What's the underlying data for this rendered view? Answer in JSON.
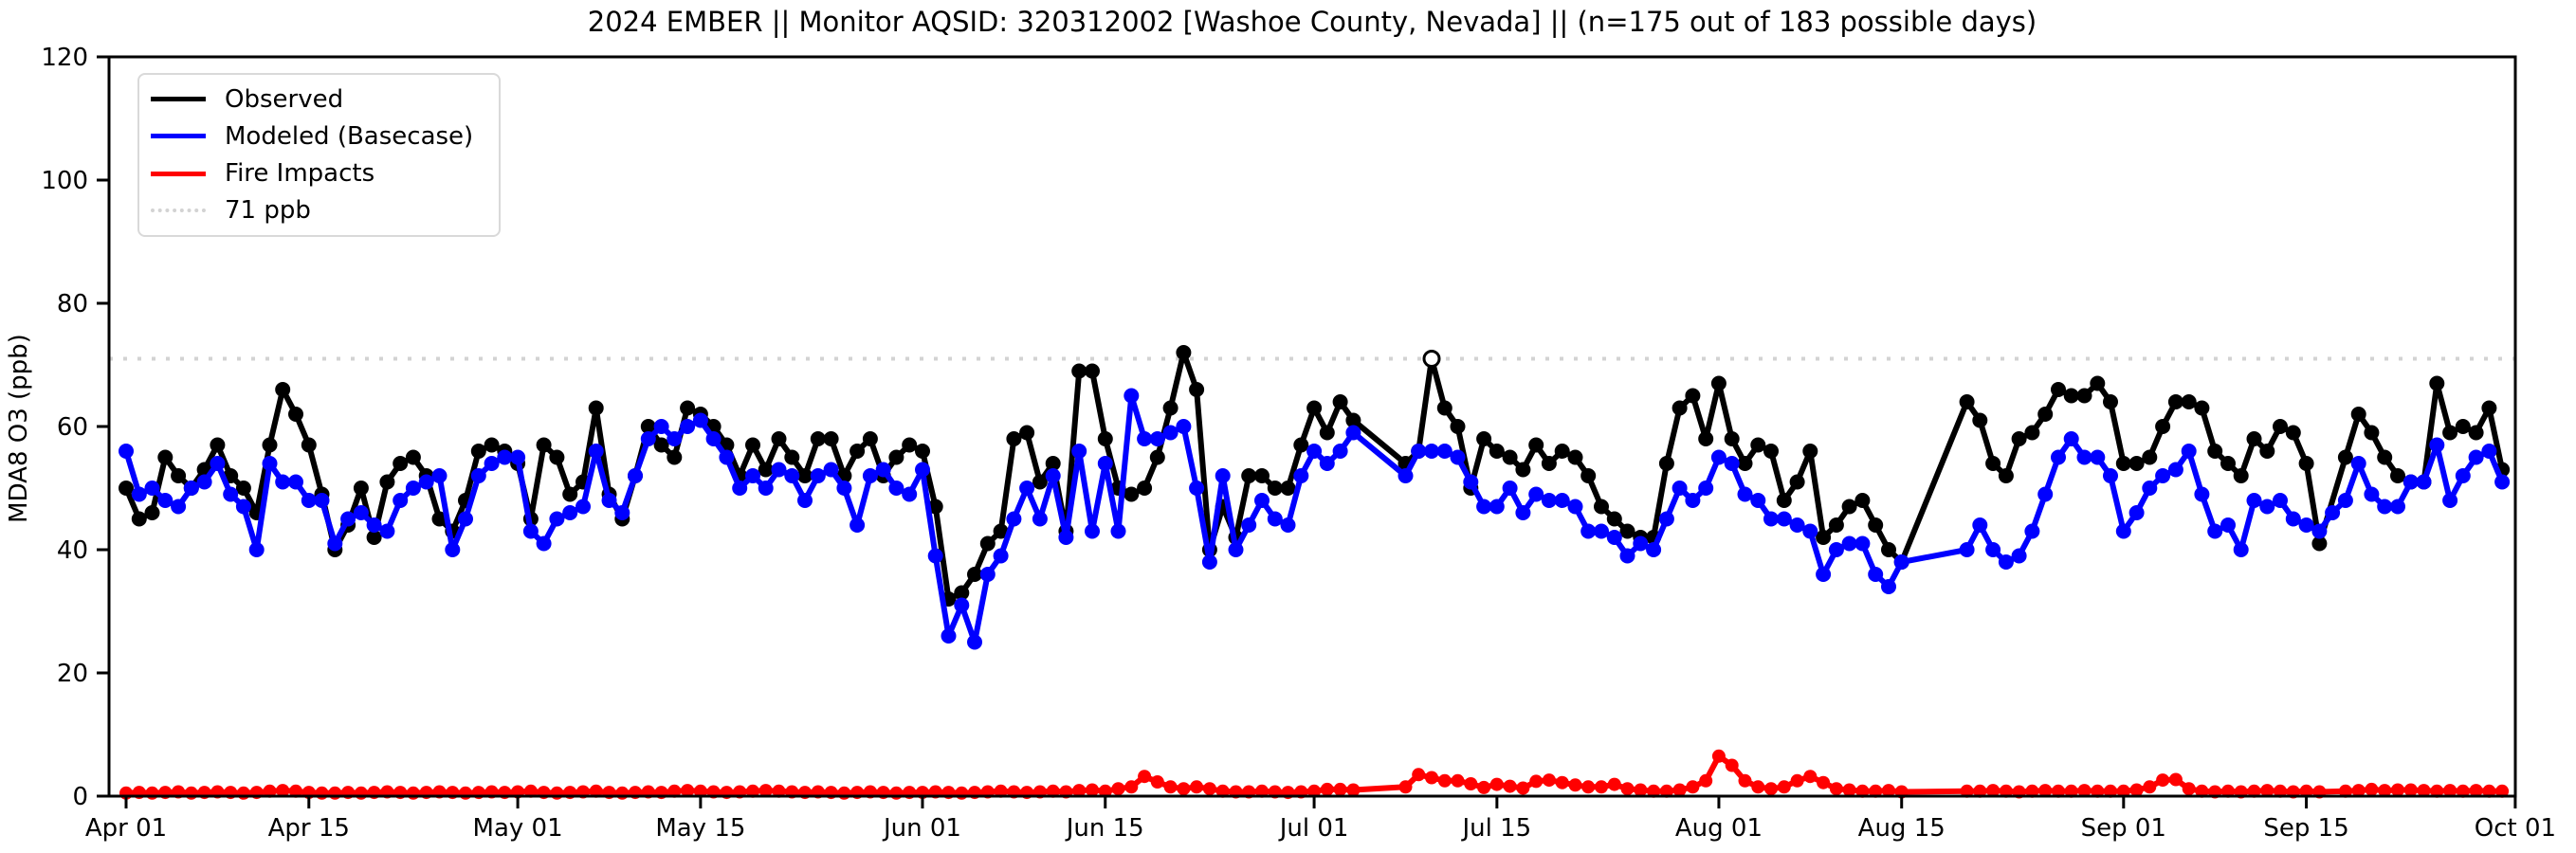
{
  "chart_data": {
    "type": "line",
    "title": "2024 EMBER || Monitor AQSID: 320312002 [Washoe County, Nevada] || (n=175 out of 183 possible days)",
    "ylabel": "MDA8 O3 (ppb)",
    "ylim": [
      0,
      120
    ],
    "yticks": [
      0,
      20,
      40,
      60,
      80,
      100,
      120
    ],
    "xticks": [
      {
        "label": "Apr 01",
        "day": 0
      },
      {
        "label": "Apr 15",
        "day": 14
      },
      {
        "label": "May 01",
        "day": 30
      },
      {
        "label": "May 15",
        "day": 44
      },
      {
        "label": "Jun 01",
        "day": 61
      },
      {
        "label": "Jun 15",
        "day": 75
      },
      {
        "label": "Jul 01",
        "day": 91
      },
      {
        "label": "Jul 15",
        "day": 105
      },
      {
        "label": "Aug 01",
        "day": 122
      },
      {
        "label": "Aug 15",
        "day": 136
      },
      {
        "label": "Sep 01",
        "day": 153
      },
      {
        "label": "Sep 15",
        "day": 167
      },
      {
        "label": "Oct 01",
        "day": 183
      }
    ],
    "n_possible_days": 183,
    "n_observed_days": 175,
    "grid": false,
    "legend_position": "upper-left",
    "threshold": {
      "label": "71 ppb",
      "value": 71,
      "color": "#d3d3d3",
      "style": "dotted"
    },
    "hollow_marker": {
      "series": "Observed",
      "day_index": 100,
      "value": 71
    },
    "legend": [
      {
        "label": "Observed",
        "color": "#000000",
        "style": "solid"
      },
      {
        "label": "Modeled (Basecase)",
        "color": "#0000ff",
        "style": "solid"
      },
      {
        "label": "Fire Impacts",
        "color": "#ff0000",
        "style": "solid"
      },
      {
        "label": "71 ppb",
        "color": "#d3d3d3",
        "style": "dotted"
      }
    ],
    "series": [
      {
        "name": "Observed",
        "color": "#000000",
        "values": [
          50,
          45,
          46,
          55,
          52,
          50,
          53,
          57,
          52,
          50,
          46,
          57,
          66,
          62,
          57,
          49,
          40,
          44,
          50,
          42,
          51,
          54,
          55,
          52,
          45,
          43,
          48,
          56,
          57,
          56,
          54,
          45,
          57,
          55,
          49,
          51,
          63,
          49,
          45,
          52,
          60,
          57,
          55,
          63,
          62,
          60,
          57,
          52,
          57,
          53,
          58,
          55,
          52,
          58,
          58,
          52,
          56,
          58,
          52,
          55,
          57,
          56,
          47,
          32,
          33,
          36,
          41,
          43,
          58,
          59,
          51,
          54,
          43,
          69,
          69,
          58,
          50,
          49,
          50,
          55,
          63,
          72,
          66,
          40,
          47,
          42,
          52,
          52,
          50,
          50,
          57,
          63,
          59,
          64,
          61,
          null,
          null,
          null,
          54,
          56,
          71,
          63,
          60,
          50,
          58,
          56,
          55,
          53,
          57,
          54,
          56,
          55,
          52,
          47,
          45,
          43,
          42,
          42,
          54,
          63,
          65,
          58,
          67,
          58,
          54,
          57,
          56,
          48,
          51,
          56,
          42,
          44,
          47,
          48,
          44,
          40,
          38,
          null,
          null,
          null,
          null,
          64,
          61,
          54,
          52,
          58,
          59,
          62,
          66,
          65,
          65,
          67,
          64,
          54,
          54,
          55,
          60,
          64,
          64,
          63,
          56,
          54,
          52,
          58,
          56,
          60,
          59,
          54,
          41,
          null,
          55,
          62,
          59,
          55,
          52,
          51,
          51,
          67,
          59,
          60,
          59,
          63,
          53
        ]
      },
      {
        "name": "Modeled (Basecase)",
        "color": "#0000ff",
        "values": [
          56,
          49,
          50,
          48,
          47,
          50,
          51,
          54,
          49,
          47,
          40,
          54,
          51,
          51,
          48,
          48,
          41,
          45,
          46,
          44,
          43,
          48,
          50,
          51,
          52,
          40,
          45,
          52,
          54,
          55,
          55,
          43,
          41,
          45,
          46,
          47,
          56,
          48,
          46,
          52,
          58,
          60,
          58,
          60,
          61,
          58,
          55,
          50,
          52,
          50,
          53,
          52,
          48,
          52,
          53,
          50,
          44,
          52,
          53,
          50,
          49,
          53,
          39,
          26,
          31,
          25,
          36,
          39,
          45,
          50,
          45,
          52,
          42,
          56,
          43,
          54,
          43,
          65,
          58,
          58,
          59,
          60,
          50,
          38,
          52,
          40,
          44,
          48,
          45,
          44,
          52,
          56,
          54,
          56,
          59,
          null,
          null,
          null,
          52,
          56,
          56,
          56,
          55,
          51,
          47,
          47,
          50,
          46,
          49,
          48,
          48,
          47,
          43,
          43,
          42,
          39,
          41,
          40,
          45,
          50,
          48,
          50,
          55,
          54,
          49,
          48,
          45,
          45,
          44,
          43,
          36,
          40,
          41,
          41,
          36,
          34,
          38,
          null,
          null,
          null,
          null,
          40,
          44,
          40,
          38,
          39,
          43,
          49,
          55,
          58,
          55,
          55,
          52,
          43,
          46,
          50,
          52,
          53,
          56,
          49,
          43,
          44,
          40,
          48,
          47,
          48,
          45,
          44,
          43,
          46,
          48,
          54,
          49,
          47,
          47,
          51,
          51,
          57,
          48,
          52,
          55,
          56,
          51
        ]
      },
      {
        "name": "Fire Impacts",
        "color": "#ff0000",
        "values": [
          0.5,
          0.6,
          0.5,
          0.6,
          0.7,
          0.5,
          0.6,
          0.7,
          0.6,
          0.5,
          0.6,
          0.8,
          0.9,
          0.8,
          0.6,
          0.5,
          0.5,
          0.6,
          0.5,
          0.6,
          0.7,
          0.6,
          0.5,
          0.6,
          0.7,
          0.6,
          0.5,
          0.6,
          0.7,
          0.6,
          0.7,
          0.8,
          0.6,
          0.5,
          0.6,
          0.7,
          0.8,
          0.6,
          0.5,
          0.6,
          0.7,
          0.6,
          0.8,
          0.9,
          0.8,
          0.7,
          0.6,
          0.7,
          0.8,
          0.9,
          0.8,
          0.7,
          0.6,
          0.7,
          0.6,
          0.5,
          0.6,
          0.7,
          0.6,
          0.5,
          0.6,
          0.6,
          0.7,
          0.6,
          0.5,
          0.6,
          0.7,
          0.8,
          0.7,
          0.6,
          0.7,
          0.8,
          0.7,
          0.9,
          1.0,
          0.8,
          1.2,
          1.5,
          3.2,
          2.3,
          1.5,
          1.2,
          1.5,
          1.2,
          0.8,
          0.7,
          0.7,
          0.8,
          0.7,
          0.6,
          0.7,
          0.8,
          1.1,
          1.1,
          1.0,
          null,
          null,
          null,
          1.5,
          3.5,
          3.0,
          2.5,
          2.5,
          2.0,
          1.4,
          1.9,
          1.6,
          1.3,
          2.4,
          2.6,
          2.2,
          1.8,
          1.5,
          1.5,
          1.9,
          1.2,
          1.0,
          0.8,
          0.8,
          1.0,
          1.5,
          2.5,
          6.5,
          5.0,
          2.5,
          1.5,
          1.2,
          1.5,
          2.5,
          3.2,
          2.2,
          1.2,
          1.0,
          0.8,
          0.8,
          0.9,
          0.7,
          null,
          null,
          null,
          null,
          0.8,
          0.8,
          0.9,
          0.8,
          0.7,
          0.8,
          0.9,
          0.8,
          0.8,
          0.9,
          0.8,
          0.8,
          0.8,
          1.0,
          1.5,
          2.6,
          2.7,
          1.2,
          0.8,
          0.7,
          0.8,
          0.7,
          0.8,
          0.9,
          0.8,
          0.7,
          0.8,
          0.7,
          null,
          0.8,
          0.9,
          1.1,
          0.9,
          1.0,
          1.0,
          0.9,
          0.8,
          0.9,
          0.8,
          0.9,
          0.8,
          0.8
        ]
      }
    ],
    "layout": {
      "plot_left": 115,
      "plot_right": 2653,
      "plot_top": 60,
      "plot_bottom": 840,
      "x_day0": 133,
      "x_per_day": 13.77,
      "y_per_unit": 6.5,
      "total_days": 183
    }
  }
}
